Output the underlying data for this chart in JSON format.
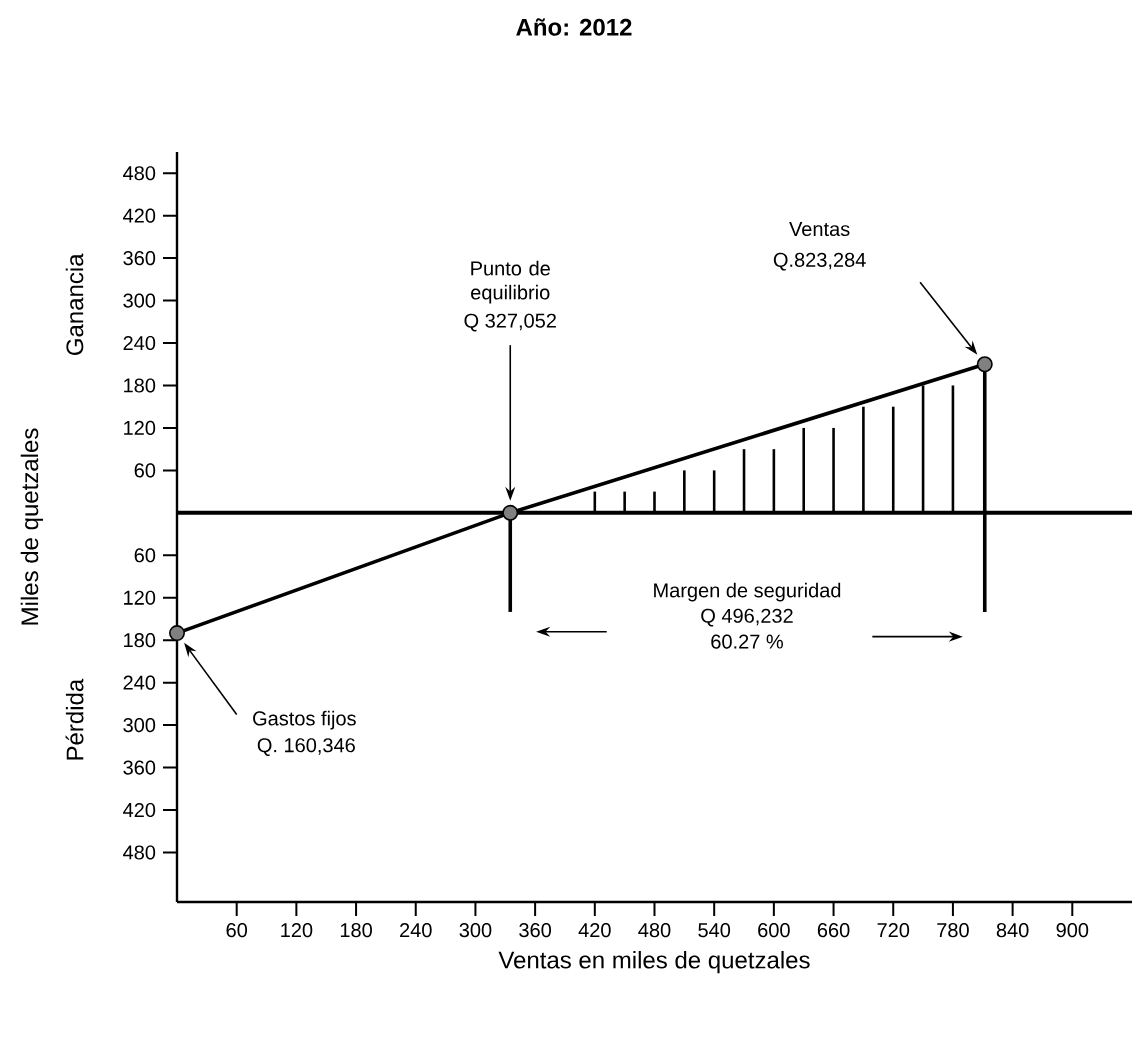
{
  "chart_data": {
    "type": "line",
    "title": "Año: 2012",
    "xlabel": "Ventas en miles de quetzales",
    "ylabel": "Miles de quetzales",
    "xlim": [
      0,
      960
    ],
    "xticks": [
      60,
      120,
      180,
      240,
      300,
      360,
      420,
      480,
      540,
      600,
      660,
      720,
      780,
      840,
      900
    ],
    "ylim": [
      -550,
      510
    ],
    "yticks": [
      {
        "value": -480,
        "label": "480"
      },
      {
        "value": -420,
        "label": "420"
      },
      {
        "value": -360,
        "label": "360"
      },
      {
        "value": -300,
        "label": "300"
      },
      {
        "value": -240,
        "label": "240"
      },
      {
        "value": -180,
        "label": "180"
      },
      {
        "value": -120,
        "label": "120"
      },
      {
        "value": -60,
        "label": "60"
      },
      60,
      120,
      180,
      240,
      300,
      360,
      420,
      480
    ],
    "series": [
      {
        "type": "line",
        "color": "#000000",
        "marker": "circle",
        "x": [
          0,
          335,
          812
        ],
        "values": [
          -170,
          0,
          210
        ]
      },
      {
        "type": "bar",
        "color": "#000000",
        "x": [
          420,
          450,
          480,
          510,
          540,
          570,
          600,
          630,
          660,
          690,
          720,
          750,
          780
        ],
        "values": [
          30,
          30,
          30,
          60,
          60,
          90,
          90,
          120,
          120,
          150,
          150,
          180,
          180
        ]
      },
      {
        "type": "line",
        "color": "#000000",
        "x": [
          335,
          335
        ],
        "values": [
          0,
          -140
        ]
      },
      {
        "type": "line",
        "color": "#000000",
        "x": [
          812,
          812
        ],
        "values": [
          210,
          -140
        ]
      }
    ],
    "ref_lines": [
      {
        "axis": "y",
        "value": 0
      }
    ],
    "annotations": [
      "Punto de equilibrio",
      "Q 327,052",
      "Ventas",
      "Q.823,284",
      "Gastos fijos",
      "Q. 160,346",
      "Margen de seguridad",
      "Q 496,232",
      "60.27 %",
      "Ganancia",
      "Pérdida"
    ]
  }
}
